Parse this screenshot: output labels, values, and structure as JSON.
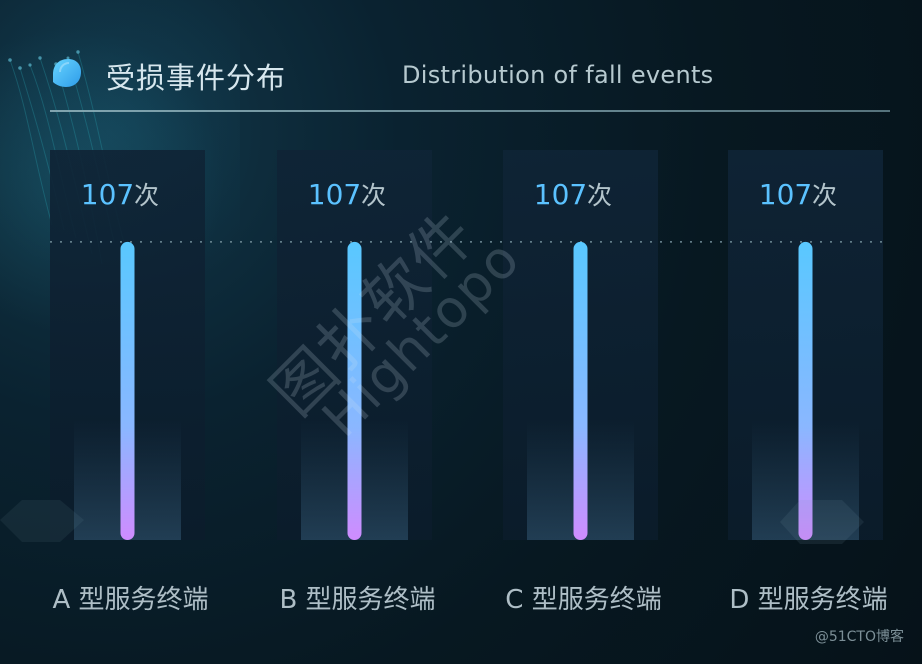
{
  "header": {
    "title_cn": "受损事件分布",
    "title_en": "Distribution of fall events"
  },
  "watermark": {
    "cn": "图扑软件",
    "en": "Hightopo"
  },
  "footer": {
    "source": "@51CTO博客"
  },
  "colors": {
    "accent": "#59c8ff",
    "bar_bottom": "#cf8cff",
    "label": "#aebec6",
    "value": "#5bc2ff"
  },
  "chart_data": {
    "type": "bar",
    "title": "受损事件分布",
    "categories": [
      "A 型服务终端",
      "B 型服务终端",
      "C 型服务终端",
      "D 型服务终端"
    ],
    "values": [
      107,
      107,
      107,
      107
    ],
    "unit": "次",
    "reference_line": 107,
    "ylim": [
      0,
      140
    ],
    "grid": false
  }
}
